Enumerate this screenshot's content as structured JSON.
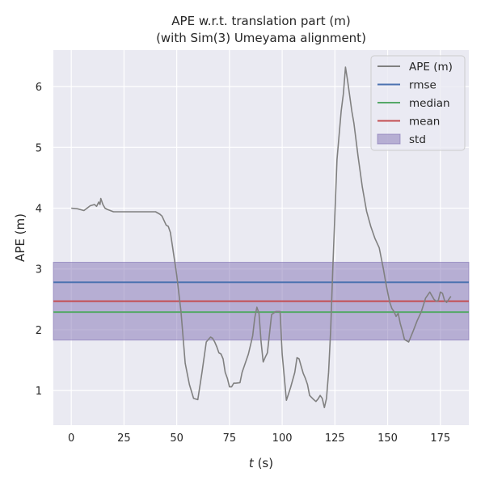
{
  "chart_data": {
    "type": "line",
    "title": "APE w.r.t. translation part (m)",
    "subtitle": "(with Sim(3) Umeyama alignment)",
    "xlabel_var": "t",
    "xlabel_unit": " (s)",
    "ylabel": "APE (m)",
    "xlim": [
      -8.5,
      188.5
    ],
    "ylim": [
      0.43,
      6.6
    ],
    "xticks": [
      0,
      25,
      50,
      75,
      100,
      125,
      150,
      175
    ],
    "yticks": [
      1,
      2,
      3,
      4,
      5,
      6
    ],
    "grid": true,
    "legend_position": "top-right",
    "series": [
      {
        "name": "APE (m)",
        "color": "#808080",
        "x": [
          0,
          3,
          6,
          9,
          11,
          12,
          13,
          13.6,
          14,
          15,
          16,
          17,
          20,
          25,
          30,
          35,
          40,
          42,
          43,
          45,
          46,
          47,
          48,
          50,
          52,
          54,
          56,
          58,
          60,
          62,
          64,
          66,
          67,
          68,
          69,
          70,
          71,
          72,
          73,
          74,
          75,
          76,
          77,
          78,
          80,
          81,
          82,
          84,
          86,
          87,
          88,
          89,
          90,
          91,
          92,
          93,
          95,
          97,
          99,
          100,
          102,
          104,
          106,
          107,
          108,
          109,
          110,
          111,
          112,
          113,
          115,
          116,
          117,
          118,
          119,
          120,
          121,
          122,
          123,
          124,
          126,
          128,
          129,
          130,
          131,
          132,
          133,
          134,
          136,
          138,
          140,
          142,
          144,
          146,
          148,
          149,
          150,
          151,
          152,
          153,
          154,
          155,
          156,
          157,
          158,
          160,
          162,
          164,
          166,
          168,
          170,
          172,
          173,
          174,
          175,
          176,
          177,
          178,
          179,
          180
        ],
        "y": [
          4.0,
          3.99,
          3.96,
          4.04,
          4.06,
          4.03,
          4.1,
          4.06,
          4.16,
          4.06,
          4.0,
          3.98,
          3.94,
          3.94,
          3.94,
          3.94,
          3.94,
          3.9,
          3.87,
          3.72,
          3.7,
          3.6,
          3.37,
          2.9,
          2.3,
          1.45,
          1.1,
          0.87,
          0.85,
          1.3,
          1.8,
          1.88,
          1.86,
          1.8,
          1.72,
          1.62,
          1.6,
          1.52,
          1.3,
          1.2,
          1.06,
          1.06,
          1.12,
          1.12,
          1.13,
          1.3,
          1.4,
          1.6,
          1.9,
          2.2,
          2.37,
          2.27,
          1.8,
          1.47,
          1.55,
          1.62,
          2.25,
          2.3,
          2.3,
          1.6,
          0.84,
          1.05,
          1.3,
          1.54,
          1.52,
          1.4,
          1.28,
          1.2,
          1.1,
          0.92,
          0.85,
          0.82,
          0.86,
          0.92,
          0.87,
          0.72,
          0.87,
          1.3,
          2.0,
          3.0,
          4.8,
          5.6,
          5.88,
          6.32,
          6.1,
          5.85,
          5.6,
          5.4,
          4.85,
          4.35,
          3.95,
          3.7,
          3.5,
          3.35,
          3.0,
          2.8,
          2.62,
          2.45,
          2.35,
          2.3,
          2.22,
          2.27,
          2.1,
          1.98,
          1.84,
          1.8,
          1.97,
          2.15,
          2.3,
          2.52,
          2.62,
          2.5,
          2.47,
          2.48,
          2.62,
          2.6,
          2.48,
          2.45,
          2.5,
          2.55
        ]
      },
      {
        "name": "rmse",
        "color": "#4c72b0",
        "value": 2.78
      },
      {
        "name": "median",
        "color": "#55a868",
        "value": 2.29
      },
      {
        "name": "mean",
        "color": "#c44e52",
        "value": 2.47
      },
      {
        "name": "std",
        "color": "#8172b3",
        "range": [
          1.83,
          3.11
        ]
      }
    ]
  }
}
